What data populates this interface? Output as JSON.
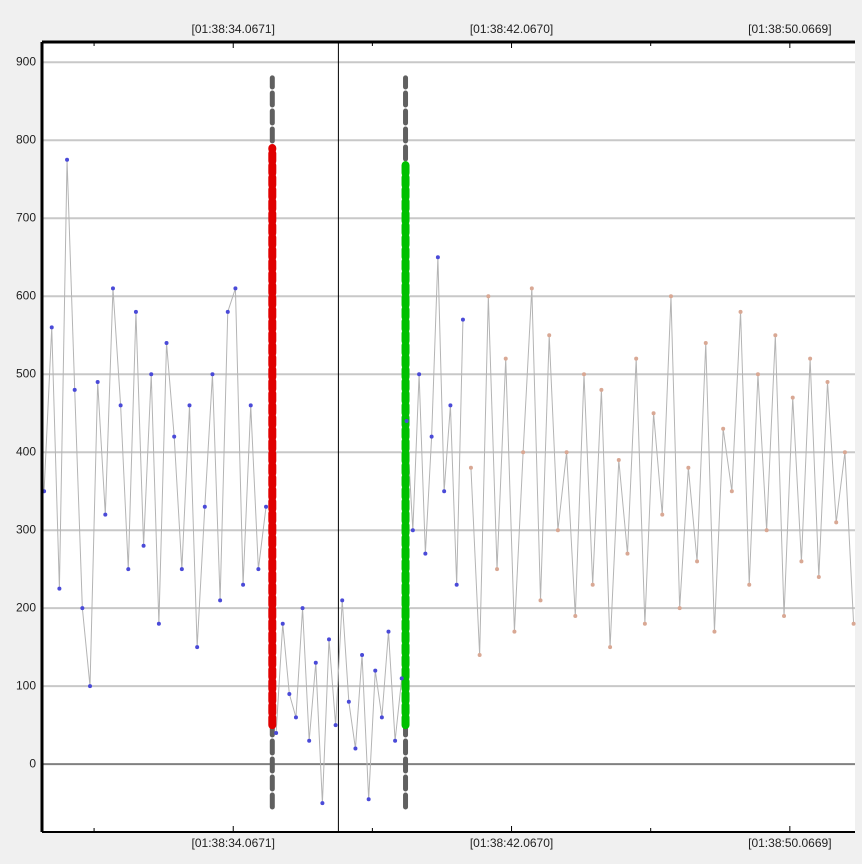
{
  "chart_data": {
    "type": "scatter-line",
    "xlim": [
      5908.57,
      5931.94
    ],
    "ylim": [
      -87,
      926
    ],
    "xticks": [
      {
        "value": 5914.0671,
        "label": "[01:38:34.0671]"
      },
      {
        "value": 5922.067,
        "label": "[01:38:42.0670]"
      },
      {
        "value": 5930.0669,
        "label": "[01:38:50.0669]"
      }
    ],
    "xminorticks": [
      5910.0671,
      5918.067,
      5926.0669
    ],
    "yticks": [
      0,
      100,
      200,
      300,
      400,
      500,
      600,
      700,
      800,
      900
    ],
    "grid": true,
    "line_color": "#b4b4b4",
    "cursor_x": 5917.09,
    "markers": [
      {
        "x": 5915.19,
        "color": "#e00000",
        "from": 50,
        "to": 790,
        "dash_from": -55,
        "dash_to": 880
      },
      {
        "x": 5919.02,
        "color": "#00c000",
        "from": 50,
        "to": 770,
        "dash_from": -55,
        "dash_to": 880
      }
    ],
    "series": [
      {
        "color": "#4a4ad8",
        "x": [
          5908.63,
          5908.85,
          5909.07,
          5909.29,
          5909.51,
          5909.73,
          5909.95,
          5910.17,
          5910.39,
          5910.61,
          5910.83,
          5911.05,
          5911.27,
          5911.49,
          5911.71,
          5911.93,
          5912.15,
          5912.37,
          5912.59,
          5912.81,
          5913.03,
          5913.25,
          5913.47,
          5913.69,
          5913.91,
          5914.13,
          5914.35,
          5914.57,
          5914.79,
          5915.01
        ],
        "values": [
          350,
          560,
          225,
          775,
          480,
          200,
          100,
          490,
          320,
          610,
          460,
          250,
          580,
          280,
          500,
          180,
          540,
          420,
          250,
          460,
          150,
          330,
          500,
          210,
          580,
          610,
          230,
          460,
          250,
          330
        ]
      },
      {
        "color": "#4a4ad8",
        "x": [
          5915.3,
          5915.49,
          5915.68,
          5915.87,
          5916.06,
          5916.25,
          5916.44,
          5916.63,
          5916.82,
          5917.01,
          5917.2,
          5917.39,
          5917.58,
          5917.77,
          5917.96,
          5918.15,
          5918.34,
          5918.53,
          5918.72,
          5918.91
        ],
        "values": [
          40,
          180,
          90,
          60,
          200,
          30,
          130,
          -50,
          160,
          50,
          210,
          80,
          20,
          140,
          -45,
          120,
          60,
          170,
          30,
          110
        ]
      },
      {
        "color": "#4a4ad8",
        "x": [
          5919.05,
          5919.23,
          5919.41,
          5919.59,
          5919.77,
          5919.95,
          5920.13,
          5920.31,
          5920.49,
          5920.67
        ],
        "values": [
          440,
          300,
          500,
          270,
          420,
          650,
          350,
          460,
          230,
          570
        ]
      },
      {
        "color": "#d9a894",
        "x": [
          5920.9,
          5921.15,
          5921.4,
          5921.65,
          5921.9,
          5922.15,
          5922.4,
          5922.65,
          5922.9,
          5923.15,
          5923.4,
          5923.65,
          5923.9,
          5924.15,
          5924.4,
          5924.65,
          5924.9,
          5925.15,
          5925.4,
          5925.65,
          5925.9,
          5926.15,
          5926.4,
          5926.65,
          5926.9,
          5927.15,
          5927.4,
          5927.65,
          5927.9,
          5928.15,
          5928.4,
          5928.65,
          5928.9,
          5929.15,
          5929.4,
          5929.65,
          5929.9,
          5930.15,
          5930.4,
          5930.65,
          5930.9,
          5931.15,
          5931.4,
          5931.65,
          5931.9
        ],
        "values": [
          380,
          140,
          600,
          250,
          520,
          170,
          400,
          610,
          210,
          550,
          300,
          400,
          190,
          500,
          230,
          480,
          150,
          390,
          270,
          520,
          180,
          450,
          320,
          600,
          200,
          380,
          260,
          540,
          170,
          430,
          350,
          580,
          230,
          500,
          300,
          550,
          190,
          470,
          260,
          520,
          240,
          490,
          310,
          400,
          180
        ]
      }
    ]
  }
}
